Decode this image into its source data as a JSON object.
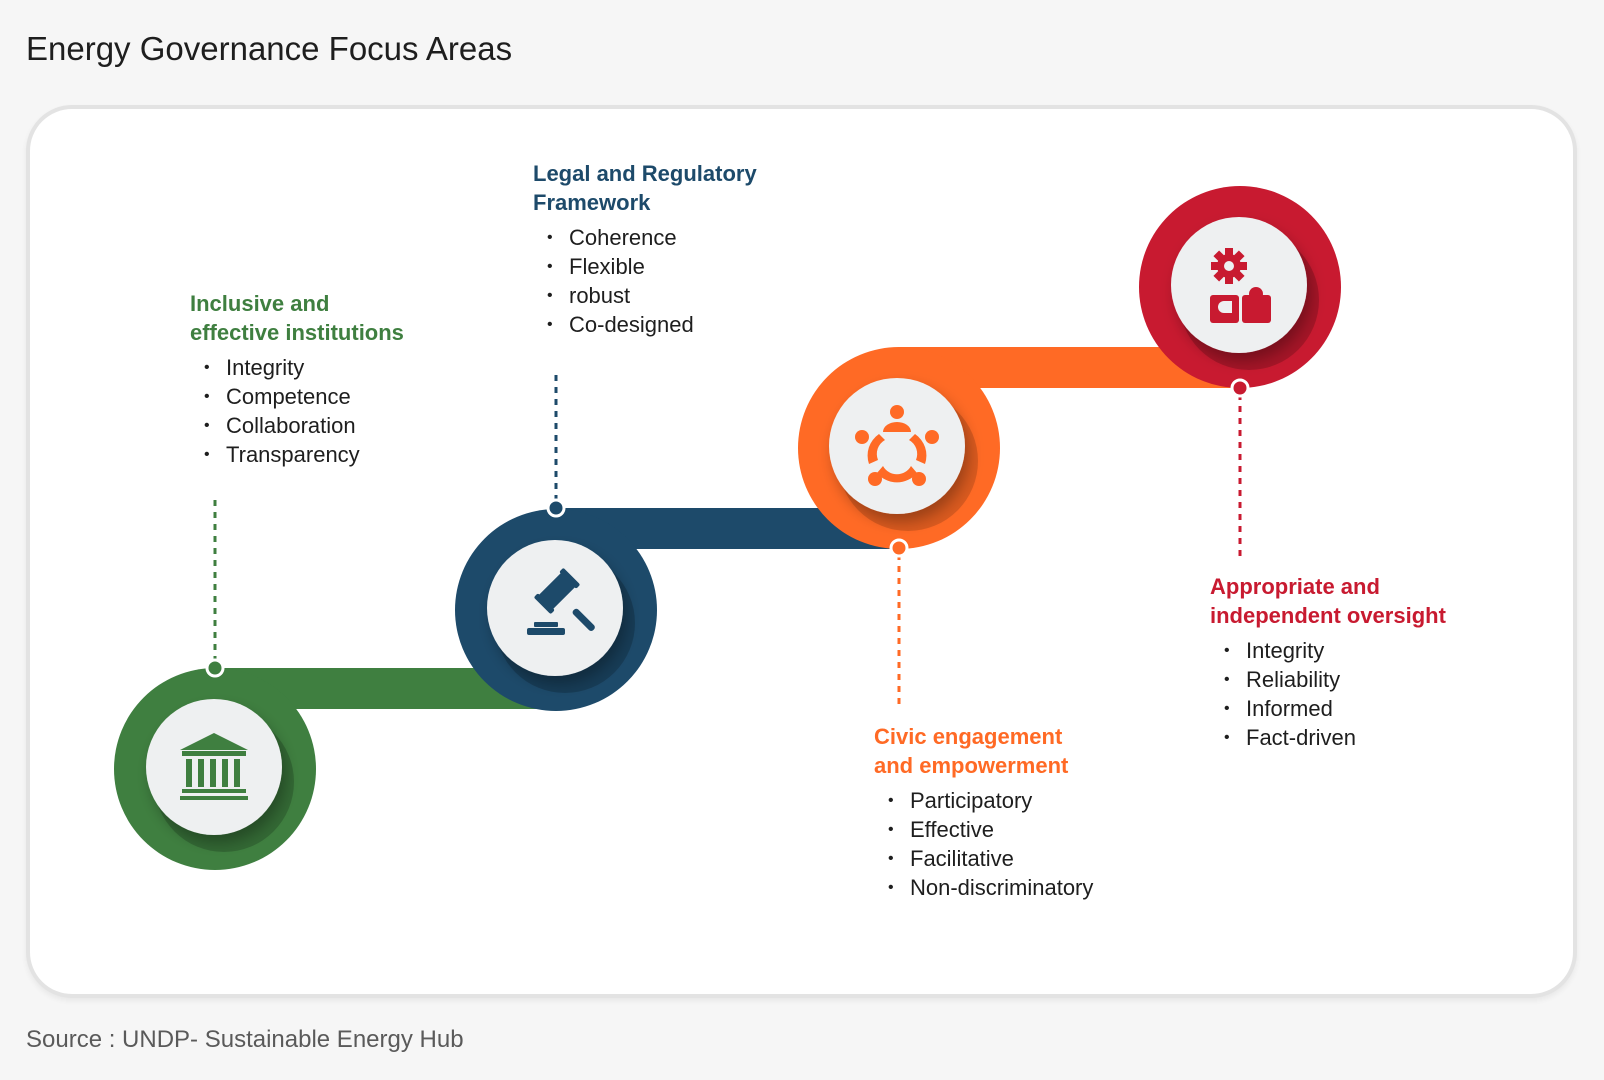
{
  "title": "Energy Governance Focus Areas",
  "source": "Source : UNDP- Sustainable Energy Hub",
  "colors": {
    "green": "#3f7f40",
    "blue": "#1d4a6a",
    "orange": "#ff6a25",
    "red": "#c81a30",
    "icon_bg": "#eef0f1"
  },
  "steps": [
    {
      "title": "Inclusive and\neffective institutions",
      "items": [
        "Integrity",
        "Competence",
        "Collaboration",
        "Transparency"
      ],
      "icon": "institution-building-icon",
      "color": "#3f7f40"
    },
    {
      "title": "Legal and Regulatory\nFramework",
      "items": [
        "Coherence",
        "Flexible",
        "robust",
        "Co-designed"
      ],
      "icon": "gavel-icon",
      "color": "#1d4a6a"
    },
    {
      "title": "Civic engagement\nand empowerment",
      "items": [
        "Participatory",
        "Effective",
        "Facilitative",
        "Non-discriminatory"
      ],
      "icon": "people-circle-icon",
      "color": "#ff6a25"
    },
    {
      "title": "Appropriate and\nindependent oversight",
      "items": [
        "Integrity",
        "Reliability",
        "Informed",
        "Fact-driven"
      ],
      "icon": "gear-puzzle-icon",
      "color": "#c81a30"
    }
  ]
}
